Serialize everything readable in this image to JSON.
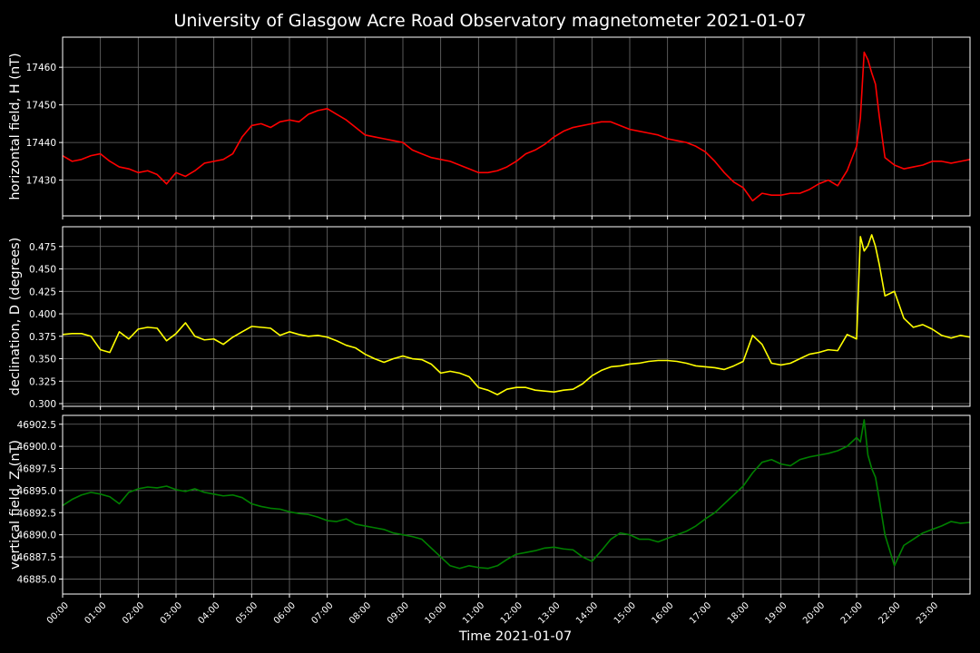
{
  "title": "University of Glasgow Acre Road Observatory magnetometer 2021-01-07",
  "background_color": "#000000",
  "grid": true,
  "chart_data": [
    {
      "type": "line",
      "title": "",
      "xlabel": "",
      "ylabel": "horizontal field, H (nT)",
      "color": "#ff0000",
      "xlim": [
        0,
        24
      ],
      "ylim": [
        17420.5,
        17468
      ],
      "yticks": [
        17430,
        17440,
        17450,
        17460
      ],
      "ytick_labels": [
        "17430",
        "17440",
        "17450",
        "17460"
      ],
      "series": [
        {
          "x": [
            0,
            0.25,
            0.5,
            0.75,
            1,
            1.25,
            1.5,
            1.75,
            2,
            2.25,
            2.5,
            2.75,
            3,
            3.25,
            3.5,
            3.75,
            4,
            4.25,
            4.5,
            4.75,
            5,
            5.25,
            5.5,
            5.75,
            6,
            6.25,
            6.5,
            6.75,
            7,
            7.25,
            7.5,
            7.75,
            8,
            8.25,
            8.5,
            8.75,
            9,
            9.25,
            9.5,
            9.75,
            10,
            10.25,
            10.5,
            10.75,
            11,
            11.25,
            11.5,
            11.75,
            12,
            12.25,
            12.5,
            12.75,
            13,
            13.25,
            13.5,
            13.75,
            14,
            14.25,
            14.5,
            14.75,
            15,
            15.25,
            15.5,
            15.75,
            16,
            16.25,
            16.5,
            16.75,
            17,
            17.25,
            17.5,
            17.75,
            18,
            18.25,
            18.5,
            18.75,
            19,
            19.25,
            19.5,
            19.75,
            20,
            20.25,
            20.5,
            20.75,
            21,
            21.1,
            21.2,
            21.3,
            21.4,
            21.5,
            21.6,
            21.75,
            22,
            22.25,
            22.5,
            22.75,
            23,
            23.25,
            23.5,
            23.75,
            24
          ],
          "y": [
            17436.5,
            17435,
            17435.5,
            17436.5,
            17437,
            17435,
            17433.5,
            17433,
            17432,
            17432.5,
            17431.5,
            17429,
            17432,
            17431,
            17432.5,
            17434.5,
            17435,
            17435.5,
            17437,
            17441.5,
            17444.5,
            17445,
            17444,
            17445.5,
            17446,
            17445.5,
            17447.5,
            17448.5,
            17449,
            17447.5,
            17446,
            17444,
            17442,
            17441.5,
            17441,
            17440.5,
            17440,
            17438,
            17437,
            17436,
            17435.5,
            17435,
            17434,
            17433,
            17432,
            17432,
            17432.5,
            17433.5,
            17435,
            17437,
            17438,
            17439.5,
            17441.5,
            17443,
            17444,
            17444.5,
            17445,
            17445.5,
            17445.5,
            17444.5,
            17443.5,
            17443,
            17442.5,
            17442,
            17441,
            17440.5,
            17440,
            17439,
            17437.5,
            17435,
            17432,
            17429.5,
            17428,
            17424.5,
            17426.5,
            17426,
            17426,
            17426.5,
            17426.5,
            17427.5,
            17429,
            17430,
            17428.5,
            17432.5,
            17439,
            17446.5,
            17464,
            17462,
            17458.5,
            17455.5,
            17447,
            17436,
            17434,
            17433,
            17433.5,
            17434,
            17435,
            17435,
            17434.5,
            17435,
            17435.5
          ]
        }
      ]
    },
    {
      "type": "line",
      "title": "",
      "xlabel": "",
      "ylabel": "declination, D (degrees)",
      "color": "#ffff00",
      "xlim": [
        0,
        24
      ],
      "ylim": [
        0.297,
        0.497
      ],
      "yticks": [
        0.3,
        0.325,
        0.35,
        0.375,
        0.4,
        0.425,
        0.45,
        0.475
      ],
      "ytick_labels": [
        "0.300",
        "0.325",
        "0.350",
        "0.375",
        "0.400",
        "0.425",
        "0.450",
        "0.475"
      ],
      "series": [
        {
          "x": [
            0,
            0.25,
            0.5,
            0.75,
            1,
            1.25,
            1.5,
            1.75,
            2,
            2.25,
            2.5,
            2.75,
            3,
            3.25,
            3.5,
            3.75,
            4,
            4.25,
            4.5,
            4.75,
            5,
            5.25,
            5.5,
            5.75,
            6,
            6.25,
            6.5,
            6.75,
            7,
            7.25,
            7.5,
            7.75,
            8,
            8.25,
            8.5,
            8.75,
            9,
            9.25,
            9.5,
            9.75,
            10,
            10.25,
            10.5,
            10.75,
            11,
            11.25,
            11.5,
            11.75,
            12,
            12.25,
            12.5,
            12.75,
            13,
            13.25,
            13.5,
            13.75,
            14,
            14.25,
            14.5,
            14.75,
            15,
            15.25,
            15.5,
            15.75,
            16,
            16.25,
            16.5,
            16.75,
            17,
            17.25,
            17.5,
            17.75,
            18,
            18.25,
            18.5,
            18.75,
            19,
            19.25,
            19.5,
            19.75,
            20,
            20.25,
            20.5,
            20.75,
            21,
            21.1,
            21.2,
            21.3,
            21.4,
            21.5,
            21.6,
            21.75,
            22,
            22.25,
            22.5,
            22.75,
            23,
            23.25,
            23.5,
            23.75,
            24
          ],
          "y": [
            0.377,
            0.378,
            0.378,
            0.375,
            0.36,
            0.357,
            0.38,
            0.372,
            0.383,
            0.385,
            0.384,
            0.37,
            0.378,
            0.39,
            0.375,
            0.371,
            0.372,
            0.366,
            0.374,
            0.38,
            0.386,
            0.385,
            0.384,
            0.376,
            0.38,
            0.377,
            0.375,
            0.376,
            0.374,
            0.37,
            0.365,
            0.362,
            0.355,
            0.35,
            0.346,
            0.35,
            0.353,
            0.35,
            0.349,
            0.344,
            0.334,
            0.336,
            0.334,
            0.33,
            0.318,
            0.315,
            0.31,
            0.316,
            0.318,
            0.318,
            0.315,
            0.314,
            0.313,
            0.315,
            0.316,
            0.322,
            0.331,
            0.337,
            0.341,
            0.342,
            0.344,
            0.345,
            0.347,
            0.348,
            0.348,
            0.347,
            0.345,
            0.342,
            0.341,
            0.34,
            0.338,
            0.342,
            0.347,
            0.376,
            0.366,
            0.345,
            0.343,
            0.345,
            0.35,
            0.355,
            0.357,
            0.36,
            0.359,
            0.377,
            0.372,
            0.486,
            0.47,
            0.476,
            0.488,
            0.475,
            0.455,
            0.42,
            0.425,
            0.395,
            0.385,
            0.388,
            0.383,
            0.376,
            0.373,
            0.376,
            0.374
          ]
        }
      ]
    },
    {
      "type": "line",
      "title": "",
      "xlabel": "Time 2021-01-07",
      "ylabel": "vertical field, Z (nT)",
      "color": "#008000",
      "xlim": [
        0,
        24
      ],
      "ylim": [
        46883.3,
        46903.5
      ],
      "yticks": [
        46885.0,
        46887.5,
        46890.0,
        46892.5,
        46895.0,
        46897.5,
        46900.0,
        46902.5
      ],
      "ytick_labels": [
        "46885.0",
        "46887.5",
        "46890.0",
        "46892.5",
        "46895.0",
        "46897.5",
        "46900.0",
        "46902.5"
      ],
      "xtick_labels": [
        "00:00",
        "01:00",
        "02:00",
        "03:00",
        "04:00",
        "05:00",
        "06:00",
        "07:00",
        "08:00",
        "09:00",
        "10:00",
        "11:00",
        "12:00",
        "13:00",
        "14:00",
        "15:00",
        "16:00",
        "17:00",
        "18:00",
        "19:00",
        "20:00",
        "21:00",
        "22:00",
        "23:00"
      ],
      "series": [
        {
          "x": [
            0,
            0.25,
            0.5,
            0.75,
            1,
            1.25,
            1.5,
            1.75,
            2,
            2.25,
            2.5,
            2.75,
            3,
            3.25,
            3.5,
            3.75,
            4,
            4.25,
            4.5,
            4.75,
            5,
            5.25,
            5.5,
            5.75,
            6,
            6.25,
            6.5,
            6.75,
            7,
            7.25,
            7.5,
            7.75,
            8,
            8.25,
            8.5,
            8.75,
            9,
            9.25,
            9.5,
            9.75,
            10,
            10.25,
            10.5,
            10.75,
            11,
            11.25,
            11.5,
            11.75,
            12,
            12.25,
            12.5,
            12.75,
            13,
            13.25,
            13.5,
            13.75,
            14,
            14.25,
            14.5,
            14.75,
            15,
            15.25,
            15.5,
            15.75,
            16,
            16.25,
            16.5,
            16.75,
            17,
            17.25,
            17.5,
            17.75,
            18,
            18.25,
            18.5,
            18.75,
            19,
            19.25,
            19.5,
            19.75,
            20,
            20.25,
            20.5,
            20.75,
            21,
            21.1,
            21.2,
            21.3,
            21.4,
            21.5,
            21.6,
            21.75,
            22,
            22.25,
            22.5,
            22.75,
            23,
            23.25,
            23.5,
            23.75,
            24
          ],
          "y": [
            46893.3,
            46894,
            46894.5,
            46894.8,
            46894.6,
            46894.3,
            46893.5,
            46894.8,
            46895.2,
            46895.4,
            46895.3,
            46895.5,
            46895.1,
            46894.9,
            46895.2,
            46894.8,
            46894.6,
            46894.4,
            46894.5,
            46894.2,
            46893.5,
            46893.2,
            46893.0,
            46892.9,
            46892.6,
            46892.4,
            46892.3,
            46892.0,
            46891.6,
            46891.5,
            46891.8,
            46891.2,
            46891.0,
            46890.8,
            46890.6,
            46890.2,
            46890.0,
            46889.8,
            46889.5,
            46888.5,
            46887.5,
            46886.5,
            46886.2,
            46886.5,
            46886.3,
            46886.2,
            46886.5,
            46887.2,
            46887.8,
            46888.0,
            46888.2,
            46888.5,
            46888.6,
            46888.4,
            46888.3,
            46887.5,
            46887.0,
            46888.2,
            46889.5,
            46890.2,
            46890.0,
            46889.5,
            46889.5,
            46889.2,
            46889.6,
            46890.0,
            46890.4,
            46891.0,
            46891.8,
            46892.5,
            46893.5,
            46894.5,
            46895.5,
            46897.0,
            46898.2,
            46898.5,
            46898.0,
            46897.8,
            46898.5,
            46898.8,
            46899.0,
            46899.2,
            46899.5,
            46900.0,
            46901.0,
            46900.5,
            46903.0,
            46899.0,
            46897.5,
            46896.5,
            46894.0,
            46890.0,
            46886.5,
            46888.8,
            46889.5,
            46890.2,
            46890.6,
            46891.0,
            46891.5,
            46891.3,
            46891.4
          ]
        }
      ]
    }
  ]
}
